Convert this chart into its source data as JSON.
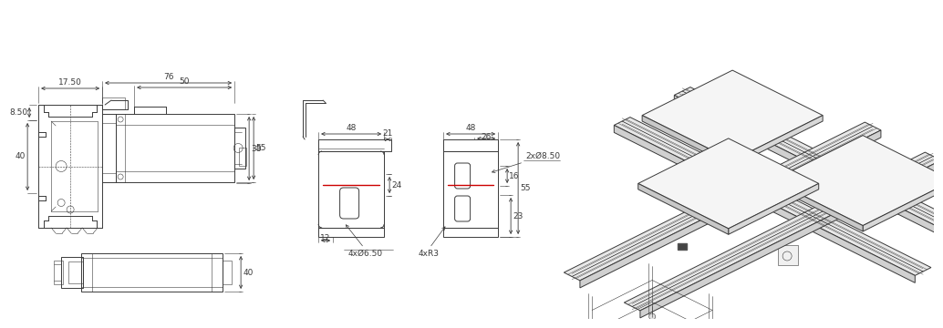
{
  "bg_color": "#ffffff",
  "lc": "#3a3a3a",
  "rc": "#cc0000",
  "lw": 0.7,
  "lw_thin": 0.4,
  "fs": 6.5,
  "dims_main": {
    "w1": "17.50",
    "w2": "76",
    "w3": "50",
    "h1": "8.50",
    "h2": "40",
    "h3": "38",
    "h4": "55",
    "h5": "40"
  },
  "dims_bracket": {
    "bw1": "48",
    "bw2": "21",
    "bw3": "48",
    "bw4": "26",
    "bh1": "24",
    "bh2": "55",
    "bh3": "23",
    "bh4": "16",
    "bb": "12",
    "holes_l": "4xØ6.50",
    "holes_r": "2xØ8.50",
    "radius": "4xR3"
  }
}
